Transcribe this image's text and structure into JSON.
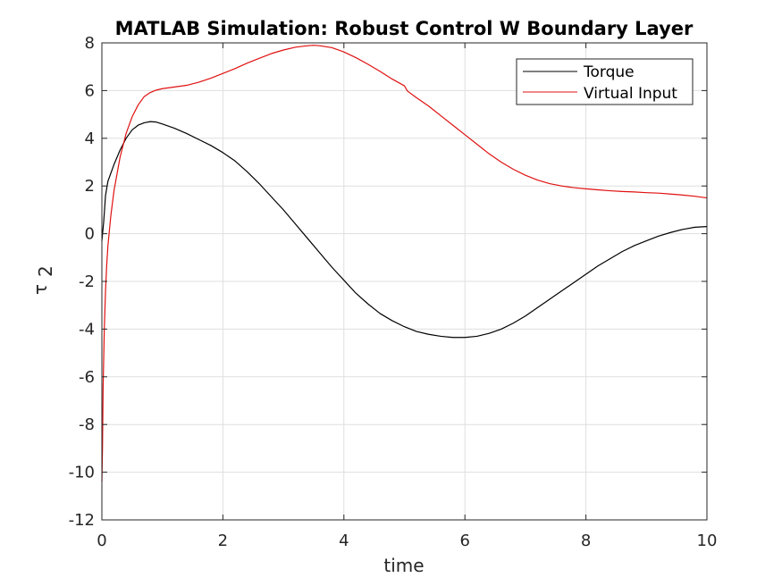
{
  "chart_data": {
    "type": "line",
    "title": "MATLAB Simulation: Robust Control W Boundary Layer",
    "xlabel": "time",
    "ylabel_symbol": "τ",
    "ylabel_subscript": "2",
    "xlim": [
      0,
      10
    ],
    "ylim": [
      -12,
      8
    ],
    "xticks": [
      0,
      2,
      4,
      6,
      8,
      10
    ],
    "yticks": [
      -12,
      -10,
      -8,
      -6,
      -4,
      -2,
      0,
      2,
      4,
      6,
      8
    ],
    "grid": true,
    "legend_position": "top-right",
    "series": [
      {
        "name": "Torque",
        "color": "#000000",
        "points": [
          [
            0,
            -0.3
          ],
          [
            0.03,
            0.5
          ],
          [
            0.06,
            1.6
          ],
          [
            0.1,
            2.2
          ],
          [
            0.2,
            2.9
          ],
          [
            0.3,
            3.5
          ],
          [
            0.4,
            4.0
          ],
          [
            0.5,
            4.35
          ],
          [
            0.6,
            4.55
          ],
          [
            0.7,
            4.65
          ],
          [
            0.8,
            4.7
          ],
          [
            0.9,
            4.68
          ],
          [
            1.0,
            4.6
          ],
          [
            1.2,
            4.42
          ],
          [
            1.4,
            4.2
          ],
          [
            1.6,
            3.95
          ],
          [
            1.8,
            3.7
          ],
          [
            2.0,
            3.4
          ],
          [
            2.2,
            3.05
          ],
          [
            2.4,
            2.6
          ],
          [
            2.6,
            2.1
          ],
          [
            2.8,
            1.55
          ],
          [
            3.0,
            1.0
          ],
          [
            3.2,
            0.4
          ],
          [
            3.4,
            -0.2
          ],
          [
            3.6,
            -0.8
          ],
          [
            3.8,
            -1.4
          ],
          [
            4.0,
            -1.95
          ],
          [
            4.2,
            -2.5
          ],
          [
            4.4,
            -2.95
          ],
          [
            4.6,
            -3.35
          ],
          [
            4.8,
            -3.65
          ],
          [
            5.0,
            -3.9
          ],
          [
            5.2,
            -4.1
          ],
          [
            5.4,
            -4.22
          ],
          [
            5.6,
            -4.3
          ],
          [
            5.8,
            -4.35
          ],
          [
            6.0,
            -4.35
          ],
          [
            6.2,
            -4.3
          ],
          [
            6.4,
            -4.18
          ],
          [
            6.6,
            -4.0
          ],
          [
            6.8,
            -3.75
          ],
          [
            7.0,
            -3.45
          ],
          [
            7.2,
            -3.1
          ],
          [
            7.4,
            -2.75
          ],
          [
            7.6,
            -2.4
          ],
          [
            7.8,
            -2.05
          ],
          [
            8.0,
            -1.7
          ],
          [
            8.2,
            -1.35
          ],
          [
            8.4,
            -1.05
          ],
          [
            8.6,
            -0.75
          ],
          [
            8.8,
            -0.5
          ],
          [
            9.0,
            -0.3
          ],
          [
            9.2,
            -0.1
          ],
          [
            9.4,
            0.05
          ],
          [
            9.6,
            0.18
          ],
          [
            9.8,
            0.27
          ],
          [
            10.0,
            0.3
          ]
        ]
      },
      {
        "name": "Virtual Input",
        "color": "#e01010",
        "points": [
          [
            0,
            -10.4
          ],
          [
            0.01,
            -9.0
          ],
          [
            0.02,
            -6.5
          ],
          [
            0.04,
            -4.0
          ],
          [
            0.06,
            -2.4
          ],
          [
            0.08,
            -1.3
          ],
          [
            0.1,
            -0.5
          ],
          [
            0.15,
            0.8
          ],
          [
            0.2,
            1.8
          ],
          [
            0.3,
            3.2
          ],
          [
            0.4,
            4.2
          ],
          [
            0.5,
            4.9
          ],
          [
            0.6,
            5.4
          ],
          [
            0.7,
            5.75
          ],
          [
            0.8,
            5.92
          ],
          [
            0.9,
            6.02
          ],
          [
            1.0,
            6.08
          ],
          [
            1.2,
            6.15
          ],
          [
            1.4,
            6.22
          ],
          [
            1.6,
            6.35
          ],
          [
            1.8,
            6.52
          ],
          [
            2.0,
            6.72
          ],
          [
            2.2,
            6.92
          ],
          [
            2.4,
            7.15
          ],
          [
            2.6,
            7.35
          ],
          [
            2.8,
            7.55
          ],
          [
            3.0,
            7.7
          ],
          [
            3.2,
            7.82
          ],
          [
            3.4,
            7.88
          ],
          [
            3.5,
            7.9
          ],
          [
            3.6,
            7.88
          ],
          [
            3.8,
            7.8
          ],
          [
            4.0,
            7.62
          ],
          [
            4.2,
            7.38
          ],
          [
            4.4,
            7.1
          ],
          [
            4.6,
            6.8
          ],
          [
            4.8,
            6.48
          ],
          [
            5.0,
            6.2
          ],
          [
            5.05,
            5.98
          ],
          [
            5.2,
            5.7
          ],
          [
            5.4,
            5.35
          ],
          [
            5.6,
            4.95
          ],
          [
            5.8,
            4.55
          ],
          [
            6.0,
            4.15
          ],
          [
            6.2,
            3.75
          ],
          [
            6.4,
            3.35
          ],
          [
            6.6,
            3.0
          ],
          [
            6.8,
            2.7
          ],
          [
            7.0,
            2.45
          ],
          [
            7.2,
            2.25
          ],
          [
            7.4,
            2.1
          ],
          [
            7.6,
            2.0
          ],
          [
            7.8,
            1.93
          ],
          [
            8.0,
            1.88
          ],
          [
            8.2,
            1.84
          ],
          [
            8.4,
            1.8
          ],
          [
            8.6,
            1.77
          ],
          [
            8.8,
            1.75
          ],
          [
            9.0,
            1.72
          ],
          [
            9.2,
            1.7
          ],
          [
            9.4,
            1.66
          ],
          [
            9.6,
            1.62
          ],
          [
            9.8,
            1.57
          ],
          [
            10.0,
            1.5
          ]
        ]
      }
    ]
  }
}
